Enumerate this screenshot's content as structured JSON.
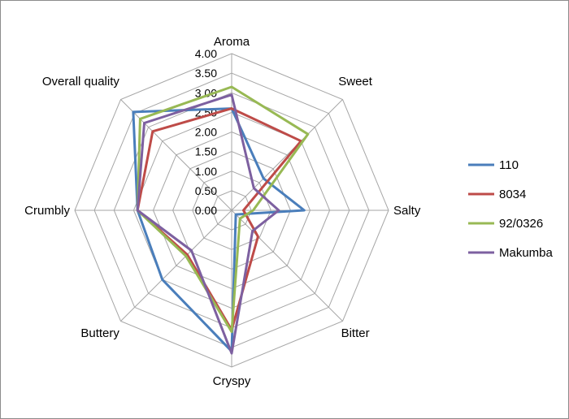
{
  "chart_data": {
    "type": "radar",
    "title": "",
    "axes": [
      "Aroma",
      "Sweet",
      "Salty",
      "Bitter",
      "Cryspy",
      "Buttery",
      "Crumbly",
      "Overall quality"
    ],
    "rlim": [
      0,
      4
    ],
    "ticks": [
      "0.00",
      "0.50",
      "1.00",
      "1.50",
      "2.00",
      "2.50",
      "3.00",
      "3.50",
      "4.00"
    ],
    "grid": true,
    "legend_position": "right",
    "series": [
      {
        "name": "110",
        "color": "#4a7ebb",
        "values": [
          2.6,
          1.15,
          1.85,
          0.15,
          3.6,
          2.5,
          2.4,
          3.55
        ]
      },
      {
        "name": "8034",
        "color": "#be4b48",
        "values": [
          2.6,
          2.5,
          0.3,
          0.95,
          3.05,
          1.6,
          2.4,
          2.85
        ]
      },
      {
        "name": "92/0326",
        "color": "#98b954",
        "values": [
          3.15,
          2.75,
          0.55,
          0.3,
          3.1,
          1.65,
          2.4,
          3.3
        ]
      },
      {
        "name": "Makumba",
        "color": "#7d60a0",
        "values": [
          2.95,
          0.8,
          1.2,
          0.75,
          3.65,
          1.45,
          2.4,
          3.15
        ]
      }
    ]
  }
}
